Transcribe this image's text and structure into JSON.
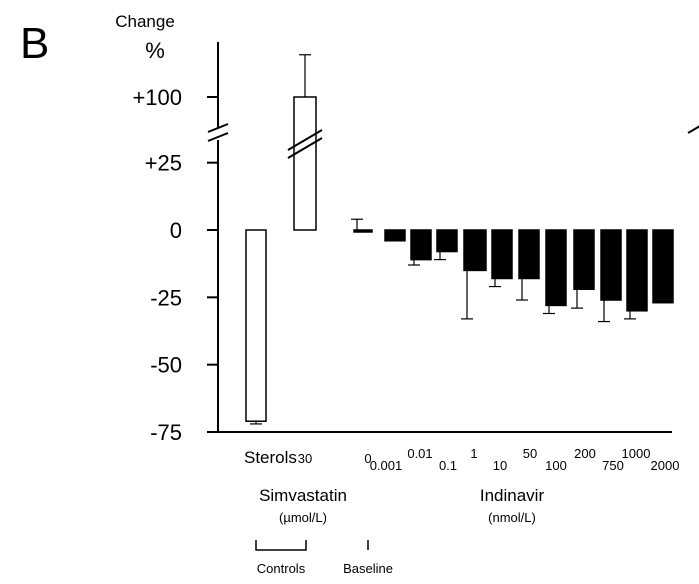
{
  "panel_label": "B",
  "chart_data": {
    "type": "bar",
    "ylabel_line1": "Change",
    "ylabel_line2": "%",
    "yticks": [
      "+100",
      "+25",
      "0",
      "-25",
      "-50",
      "-75"
    ],
    "ylim": [
      -75,
      100
    ],
    "axis_break": "between +25 and +100",
    "grid": false,
    "categories": [
      "Sterols",
      "30",
      "0",
      "0.001",
      "0.01",
      "0.1",
      "1",
      "10",
      "50",
      "100",
      "200",
      "750",
      "1000",
      "2000"
    ],
    "values": [
      -71,
      100,
      0,
      -4,
      -11,
      -8,
      -15,
      -18,
      -18,
      -28,
      -22,
      -26,
      -30,
      -27
    ],
    "errors": [
      1,
      48,
      4,
      0,
      2,
      3,
      18,
      3,
      8,
      3,
      7,
      8,
      3,
      0
    ],
    "fill": [
      "white",
      "white",
      "black",
      "black",
      "black",
      "black",
      "black",
      "black",
      "black",
      "black",
      "black",
      "black",
      "black",
      "black"
    ],
    "group_labels": {
      "simvastatin": "Simvastatin",
      "simvastatin_unit": "(µmol/L)",
      "indinavir": "Indinavir",
      "indinavir_unit": "(nmol/L)",
      "controls": "Controls",
      "baseline": "Baseline"
    }
  }
}
